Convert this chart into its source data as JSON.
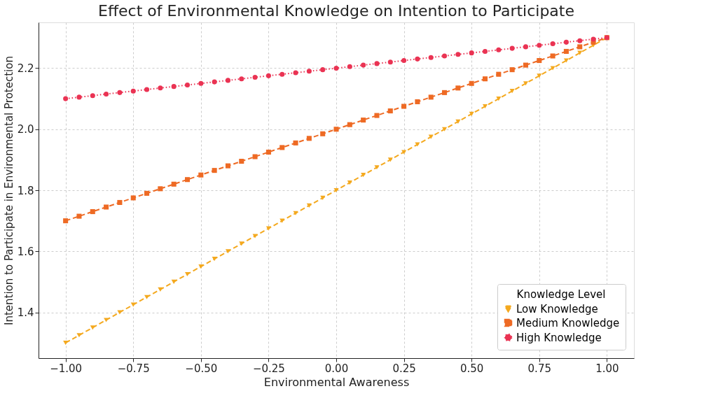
{
  "chart_data": {
    "type": "line",
    "title": "Effect of Environmental Knowledge on Intention to Participate",
    "xlabel": "Environmental Awareness",
    "ylabel": "Intention to Participate in Environmental Protection",
    "legend_title": "Knowledge Level",
    "legend": "bottom right",
    "grid": true,
    "x": [
      -1,
      -0.95,
      -0.9,
      -0.85,
      -0.8,
      -0.75,
      -0.7,
      -0.65,
      -0.6,
      -0.55,
      -0.5,
      -0.45,
      -0.4,
      -0.35,
      -0.3,
      -0.25,
      -0.2,
      -0.15,
      -0.1,
      -0.05,
      0,
      0.05,
      0.1,
      0.15,
      0.2,
      0.25,
      0.3,
      0.35,
      0.4,
      0.45,
      0.5,
      0.55,
      0.6,
      0.65,
      0.7,
      0.75,
      0.8,
      0.85,
      0.9,
      0.95,
      1
    ],
    "series": [
      {
        "name": "Low Knowledge",
        "color": "#f4a91f",
        "marker": "triangle",
        "line_style": "dashed",
        "values": [
          1.3,
          1.325,
          1.35,
          1.375,
          1.4,
          1.425,
          1.45,
          1.475,
          1.5,
          1.525,
          1.55,
          1.575,
          1.6,
          1.625,
          1.65,
          1.675,
          1.7,
          1.725,
          1.75,
          1.775,
          1.8,
          1.825,
          1.85,
          1.875,
          1.9,
          1.925,
          1.95,
          1.975,
          2.0,
          2.025,
          2.05,
          2.075,
          2.1,
          2.125,
          2.15,
          2.175,
          2.2,
          2.225,
          2.25,
          2.275,
          2.3
        ]
      },
      {
        "name": "Medium Knowledge",
        "color": "#ee6a24",
        "marker": "square",
        "line_style": "dashed",
        "values": [
          1.7,
          1.715,
          1.73,
          1.745,
          1.76,
          1.775,
          1.79,
          1.805,
          1.82,
          1.835,
          1.85,
          1.865,
          1.88,
          1.895,
          1.91,
          1.925,
          1.94,
          1.955,
          1.97,
          1.985,
          2.0,
          2.015,
          2.03,
          2.045,
          2.06,
          2.075,
          2.09,
          2.105,
          2.12,
          2.135,
          2.15,
          2.165,
          2.18,
          2.195,
          2.21,
          2.225,
          2.24,
          2.255,
          2.27,
          2.285,
          2.3
        ]
      },
      {
        "name": "High Knowledge",
        "color": "#ea3353",
        "marker": "circle",
        "line_style": "dotted",
        "values": [
          2.1,
          2.105,
          2.11,
          2.115,
          2.12,
          2.125,
          2.13,
          2.135,
          2.14,
          2.145,
          2.15,
          2.155,
          2.16,
          2.165,
          2.17,
          2.175,
          2.18,
          2.185,
          2.19,
          2.195,
          2.2,
          2.205,
          2.21,
          2.215,
          2.22,
          2.225,
          2.23,
          2.235,
          2.24,
          2.245,
          2.25,
          2.255,
          2.26,
          2.265,
          2.27,
          2.275,
          2.28,
          2.285,
          2.29,
          2.295,
          2.3
        ]
      }
    ],
    "xlim": [
      -1.1,
      1.1
    ],
    "xticks": [
      {
        "value": -1,
        "label": "−1.00"
      },
      {
        "value": -0.75,
        "label": "−0.75"
      },
      {
        "value": -0.5,
        "label": "−0.50"
      },
      {
        "value": -0.25,
        "label": "−0.25"
      },
      {
        "value": 0,
        "label": "0.00"
      },
      {
        "value": 0.25,
        "label": "0.25"
      },
      {
        "value": 0.5,
        "label": "0.50"
      },
      {
        "value": 0.75,
        "label": "0.75"
      },
      {
        "value": 1,
        "label": "1.00"
      }
    ],
    "ylim": [
      1.25,
      2.35
    ],
    "yticks": [
      1.4,
      1.6,
      1.8,
      {
        "value": 2.0,
        "label": "2.0"
      },
      2.2
    ]
  }
}
